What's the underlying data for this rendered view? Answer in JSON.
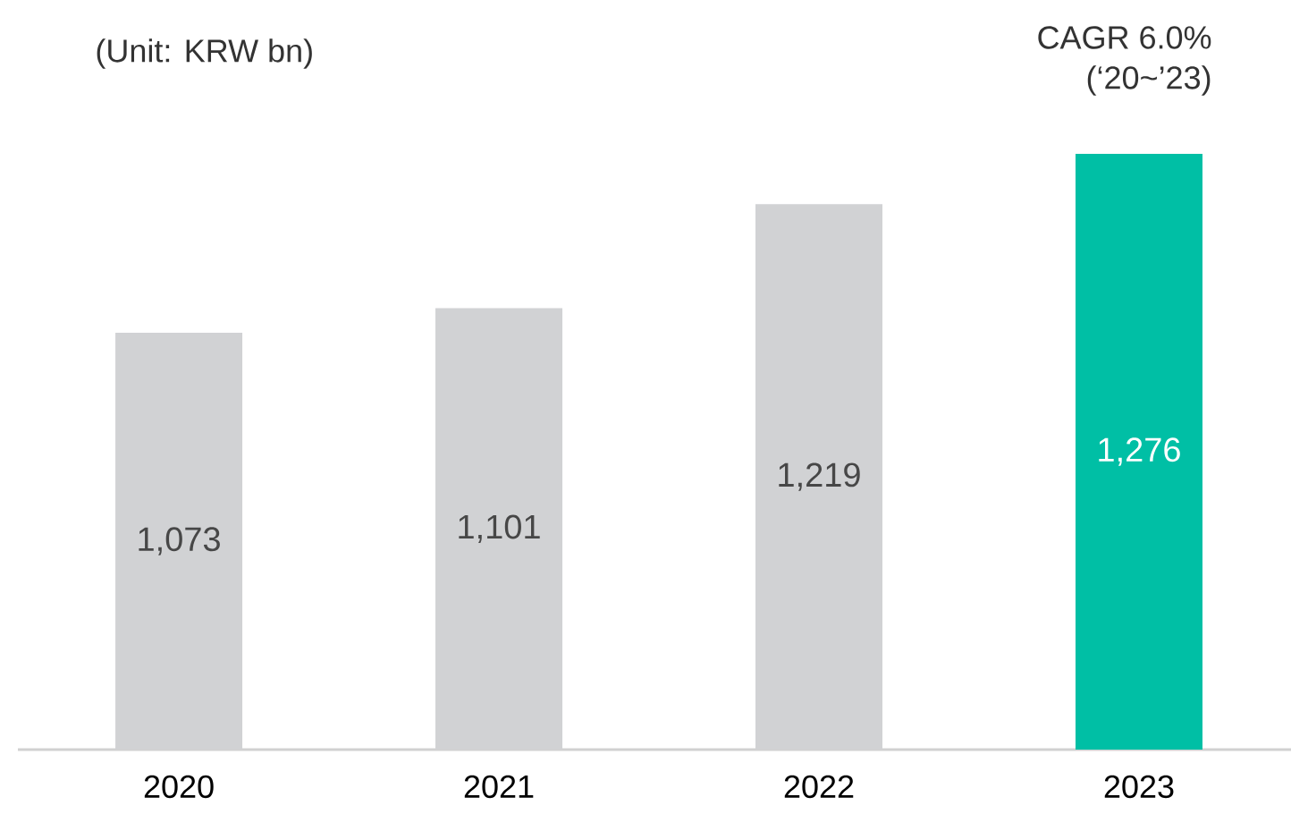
{
  "chart_data": {
    "type": "bar",
    "subtitle": "(Unit: KRW bn)",
    "annotations": [
      "CAGR 6.0%",
      "(‘20~’23)"
    ],
    "categories": [
      "2020",
      "2021",
      "2022",
      "2023"
    ],
    "values": [
      1073,
      1101,
      1219,
      1276
    ],
    "colors": [
      "#d1d2d4",
      "#d1d2d4",
      "#d1d2d4",
      "#00bfa5"
    ],
    "value_labels": [
      "1,073",
      "1,101",
      "1,219",
      "1,276"
    ],
    "ylim": [
      600,
      1276
    ]
  }
}
